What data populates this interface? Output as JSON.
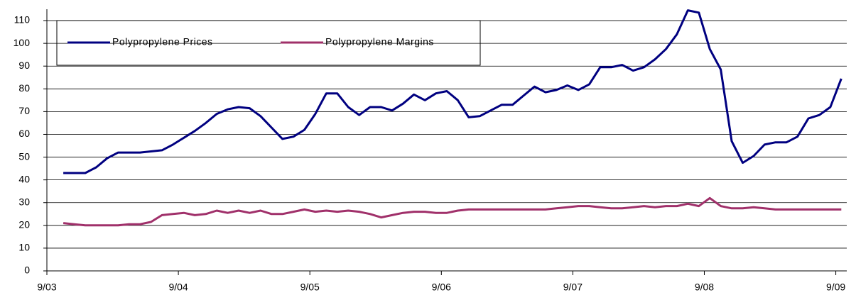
{
  "chart_data": {
    "type": "line",
    "x": [
      1.5,
      2.5,
      3.5,
      4.5,
      5.5,
      6.5,
      7.5,
      8.5,
      9.5,
      10.5,
      11.5,
      12.5,
      13.5,
      14.5,
      15.5,
      16.5,
      17.5,
      18.5,
      19.5,
      20.5,
      21.5,
      22.5,
      23.5,
      24.5,
      25.5,
      26.5,
      27.5,
      28.5,
      29.5,
      30.5,
      31.5,
      32.5,
      33.5,
      34.5,
      35.5,
      36.5,
      37.5,
      38.5,
      39.5,
      40.5,
      41.5,
      42.5,
      43.5,
      44.5,
      45.5,
      46.5,
      47.5,
      48.5,
      49.5,
      50.5,
      51.5,
      52.5,
      53.5,
      54.5,
      55.5,
      56.5,
      57.5,
      58.5,
      59.5,
      60.5,
      61.5,
      62.5,
      63.5,
      64.5,
      65.5,
      66.5,
      67.5,
      68.5,
      69.5,
      70.5,
      71.5,
      72.5
    ],
    "series": [
      {
        "name": "Polypropylene Prices",
        "color": "#000080",
        "values": [
          43,
          43,
          43,
          45.5,
          49.5,
          52,
          52,
          52,
          52.5,
          53,
          55.5,
          58.5,
          61.5,
          65,
          69,
          71,
          72,
          71.5,
          68,
          63,
          58,
          59,
          62,
          69,
          78,
          78,
          72,
          68.5,
          72,
          72,
          70.5,
          73.5,
          77.5,
          75,
          78,
          79,
          75,
          67.5,
          68,
          70.5,
          73,
          73,
          77,
          81,
          78.5,
          79.5,
          81.5,
          79.5,
          82,
          89.5,
          89.5,
          90.5,
          88,
          89.5,
          93,
          97.5,
          104,
          114.5,
          113.5,
          97.5,
          88.5,
          57,
          47.5,
          50.5,
          55.5,
          56.5,
          56.5,
          59,
          67,
          68.5,
          72,
          84.5
        ]
      },
      {
        "name": "Polypropylene Margins",
        "color": "#a0306a",
        "values": [
          21,
          20.5,
          20,
          20,
          20,
          20,
          20.5,
          20.5,
          21.5,
          24.5,
          25,
          25.5,
          24.5,
          25,
          26.5,
          25.5,
          26.5,
          25.5,
          26.5,
          25,
          25,
          26,
          27,
          26,
          26.5,
          26,
          26.5,
          26,
          25,
          23.5,
          24.5,
          25.5,
          26,
          26,
          25.5,
          25.5,
          26.5,
          27,
          27,
          27,
          27,
          27,
          27,
          27,
          27,
          27.5,
          28,
          28.5,
          28.5,
          28,
          27.5,
          27.5,
          28,
          28.5,
          28,
          28.5,
          28.5,
          29.5,
          28.5,
          32,
          28.5,
          27.5,
          27.5,
          28,
          27.5,
          27,
          27,
          27,
          27,
          27,
          27,
          27
        ]
      }
    ],
    "xlim": [
      0,
      73
    ],
    "xticks": [
      {
        "value": 0,
        "label": "9/03"
      },
      {
        "value": 12,
        "label": "9/04"
      },
      {
        "value": 24,
        "label": "9/05"
      },
      {
        "value": 36,
        "label": "9/06"
      },
      {
        "value": 48,
        "label": "9/07"
      },
      {
        "value": 60,
        "label": "9/08"
      },
      {
        "value": 72,
        "label": "9/09"
      }
    ],
    "ylim": [
      0,
      115
    ],
    "yticks": [
      0,
      10,
      20,
      30,
      40,
      50,
      60,
      70,
      80,
      90,
      100,
      110
    ],
    "grid": true
  }
}
